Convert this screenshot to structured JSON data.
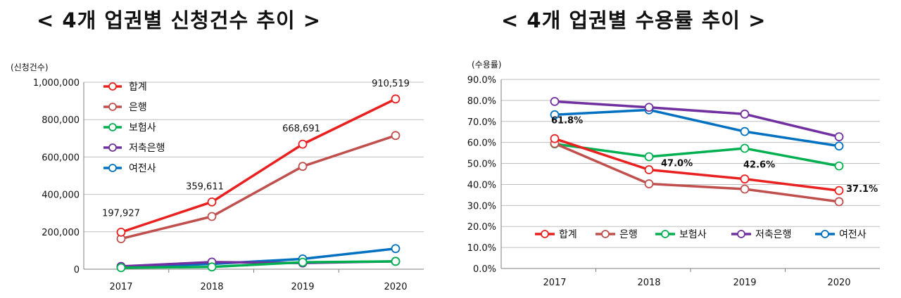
{
  "titles": {
    "left": "< 4개 업권별 신청건수 추이 >",
    "right": "< 4개 업권별 수용률 추이 >"
  },
  "chart_data": [
    {
      "type": "line",
      "ylabel": "(신청건수)",
      "x": [
        "2017",
        "2018",
        "2019",
        "2020"
      ],
      "ylim": [
        0,
        1000000
      ],
      "yticks": [
        "0",
        "200,000",
        "400,000",
        "600,000",
        "800,000",
        "1,000,000"
      ],
      "grid": true,
      "legend_position": "top-left",
      "series": [
        {
          "name": "합계",
          "color": "#e8201f",
          "values": [
            197927,
            359611,
            668691,
            910519
          ],
          "labels": [
            "197,927",
            "359,611",
            "668,691",
            "910,519"
          ]
        },
        {
          "name": "은행",
          "color": "#c0504d",
          "values": [
            163000,
            282000,
            550000,
            715000
          ]
        },
        {
          "name": "보험사",
          "color": "#00b050",
          "values": [
            8000,
            12000,
            37000,
            42000
          ]
        },
        {
          "name": "저축은행",
          "color": "#7030a0",
          "values": [
            15000,
            38000,
            33000,
            42000
          ]
        },
        {
          "name": "여전사",
          "color": "#0070c0",
          "values": [
            12000,
            28000,
            55000,
            110000
          ]
        }
      ]
    },
    {
      "type": "line",
      "ylabel": "(수용률)",
      "x": [
        "2017",
        "2018",
        "2019",
        "2020"
      ],
      "ylim": [
        0,
        90
      ],
      "yticks": [
        "0.0%",
        "10.0%",
        "20.0%",
        "30.0%",
        "40.0%",
        "50.0%",
        "60.0%",
        "70.0%",
        "80.0%",
        "90.0%"
      ],
      "grid": true,
      "legend_position": "bottom",
      "series": [
        {
          "name": "합계",
          "color": "#e8201f",
          "values": [
            61.8,
            47.0,
            42.6,
            37.1
          ],
          "labels": [
            "61.8%",
            "47.0%",
            "42.6%",
            "37.1%"
          ]
        },
        {
          "name": "은행",
          "color": "#c0504d",
          "values": [
            59.5,
            40.3,
            37.8,
            31.8
          ]
        },
        {
          "name": "보험사",
          "color": "#00b050",
          "values": [
            59.3,
            53.2,
            57.2,
            48.8
          ]
        },
        {
          "name": "저축은행",
          "color": "#7030a0",
          "values": [
            79.5,
            76.7,
            73.5,
            62.7
          ]
        },
        {
          "name": "여전사",
          "color": "#0070c0",
          "values": [
            73.2,
            75.5,
            65.2,
            58.3
          ]
        }
      ]
    }
  ]
}
